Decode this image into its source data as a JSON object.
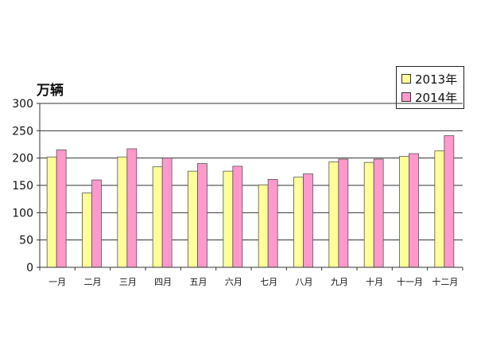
{
  "chart_data": {
    "type": "bar",
    "ylabel": "万辆",
    "ylim": [
      0,
      300
    ],
    "yticks": [
      0,
      50,
      100,
      150,
      200,
      250,
      300
    ],
    "grid": true,
    "legend_position": "top-right",
    "categories": [
      "一月",
      "二月",
      "三月",
      "四月",
      "五月",
      "六月",
      "七月",
      "八月",
      "九月",
      "十月",
      "十一月",
      "十二月"
    ],
    "series": [
      {
        "name": "2013年",
        "color": "#ffff99",
        "values": [
          202,
          136,
          202,
          184,
          176,
          176,
          151,
          165,
          193,
          192,
          203,
          213
        ]
      },
      {
        "name": "2014年",
        "color": "#ff99cc",
        "values": [
          215,
          160,
          217,
          200,
          190,
          185,
          161,
          171,
          198,
          198,
          208,
          241
        ]
      }
    ]
  }
}
